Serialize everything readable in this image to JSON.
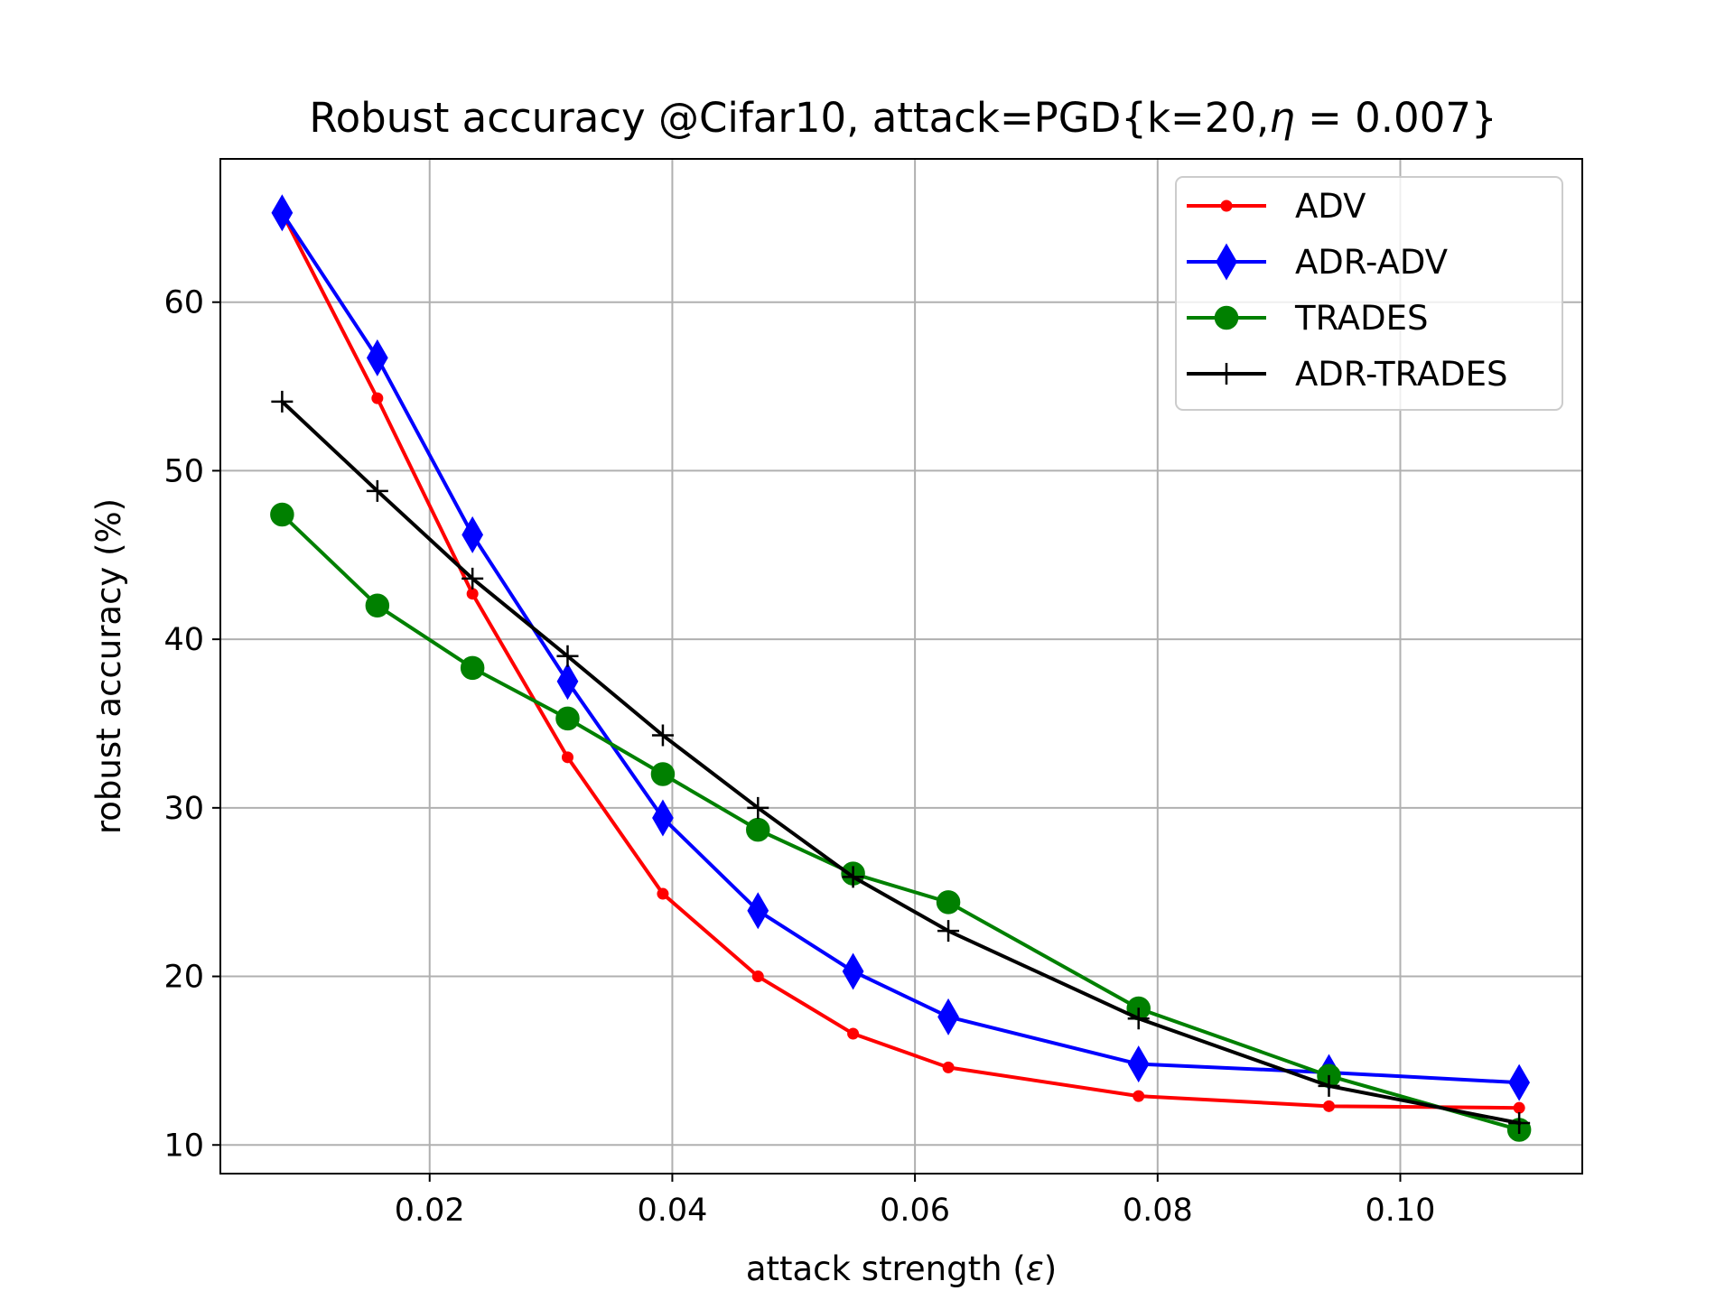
{
  "chart_data": {
    "type": "line",
    "title_main": "Robust accuracy @Cifar10, attack=PGD{k=20,",
    "title_eta": "η",
    "title_rest": " = 0.007}",
    "xlabel_main": "attack strength (",
    "xlabel_eps": "ε",
    "xlabel_close": ")",
    "ylabel": "robust accuracy (%)",
    "xlim": [
      0.00275,
      0.115
    ],
    "ylim": [
      8.3,
      68.5
    ],
    "grid": true,
    "legend_position": "upper right",
    "x_ticks": [
      0.02,
      0.04,
      0.06,
      0.08,
      0.1
    ],
    "x_tick_labels": [
      "0.02",
      "0.04",
      "0.06",
      "0.08",
      "0.10"
    ],
    "y_ticks": [
      10,
      20,
      30,
      40,
      50,
      60
    ],
    "y_tick_labels": [
      "10",
      "20",
      "30",
      "40",
      "50",
      "60"
    ],
    "x": [
      0.00784,
      0.01569,
      0.02353,
      0.03137,
      0.03922,
      0.04706,
      0.0549,
      0.06275,
      0.07843,
      0.09412,
      0.1098
    ],
    "series": [
      {
        "name": "ADV",
        "color": "#ff0000",
        "marker": "point",
        "values": [
          65.3,
          54.3,
          42.7,
          33.0,
          24.9,
          20.0,
          16.6,
          14.6,
          12.9,
          12.3,
          12.2
        ]
      },
      {
        "name": "ADR-ADV",
        "color": "#0000ff",
        "marker": "thin-diamond",
        "values": [
          65.3,
          56.7,
          46.2,
          37.5,
          29.4,
          23.9,
          20.3,
          17.6,
          14.8,
          14.3,
          13.7
        ]
      },
      {
        "name": "TRADES",
        "color": "#008000",
        "marker": "circle",
        "values": [
          47.4,
          42.0,
          38.3,
          35.3,
          32.0,
          28.7,
          26.1,
          24.4,
          18.1,
          14.1,
          10.9
        ]
      },
      {
        "name": "ADR-TRADES",
        "color": "#000000",
        "marker": "plus",
        "values": [
          54.1,
          48.8,
          43.6,
          39.0,
          34.3,
          30.0,
          25.9,
          22.7,
          17.5,
          13.5,
          11.3
        ]
      }
    ]
  }
}
